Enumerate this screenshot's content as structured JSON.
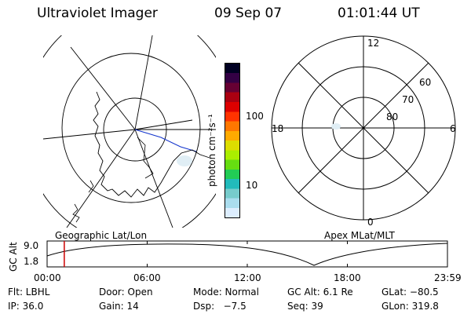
{
  "header": {
    "instrument": "Ultraviolet Imager",
    "date": "09 Sep 07",
    "time": "01:01:44 UT"
  },
  "geo_panel": {
    "label": "Geographic Lat/Lon"
  },
  "polar_panel": {
    "label": "Apex MLat/MLT",
    "mlt_labels": {
      "top": "12",
      "left": "18",
      "right": "6",
      "bottom": "0"
    },
    "lat_labels": [
      "60",
      "70",
      "80"
    ]
  },
  "colorbar": {
    "unit_label": "photon cm⁻²s⁻¹",
    "tick_labels": [
      "100",
      "10"
    ],
    "colors": [
      "#ddeeff",
      "#aaddee",
      "#77cccc",
      "#22bbbb",
      "#22cc55",
      "#66dd11",
      "#aaee00",
      "#dddd00",
      "#ffaa00",
      "#ff7700",
      "#ff3300",
      "#dd0000",
      "#aa0011",
      "#660033",
      "#330044",
      "#000022"
    ]
  },
  "altitude_plot": {
    "y_axis_label": "GC Alt",
    "y_tick_labels": [
      "9.0",
      "1.8"
    ],
    "x_tick_labels": [
      "00:00",
      "06:00",
      "12:00",
      "18:00",
      "23:59"
    ],
    "current_time_marker_hours": 1.03
  },
  "info": {
    "row1": [
      {
        "key": "flt",
        "text": "Flt: LBHL"
      },
      {
        "key": "door",
        "text": "Door: Open"
      },
      {
        "key": "mode",
        "text": "Mode: Normal"
      },
      {
        "key": "gc_alt",
        "text": "GC Alt: 6.1 Re"
      },
      {
        "key": "glat",
        "text": "GLat: −80.5"
      }
    ],
    "row2": [
      {
        "key": "ip",
        "text": "IP: 36.0"
      },
      {
        "key": "gain",
        "text": "Gain: 14"
      },
      {
        "key": "dsp",
        "text": "Dsp:   −7.5"
      },
      {
        "key": "seq",
        "text": "Seq: 39"
      },
      {
        "key": "glon",
        "text": "GLon: 319.8"
      }
    ]
  }
}
